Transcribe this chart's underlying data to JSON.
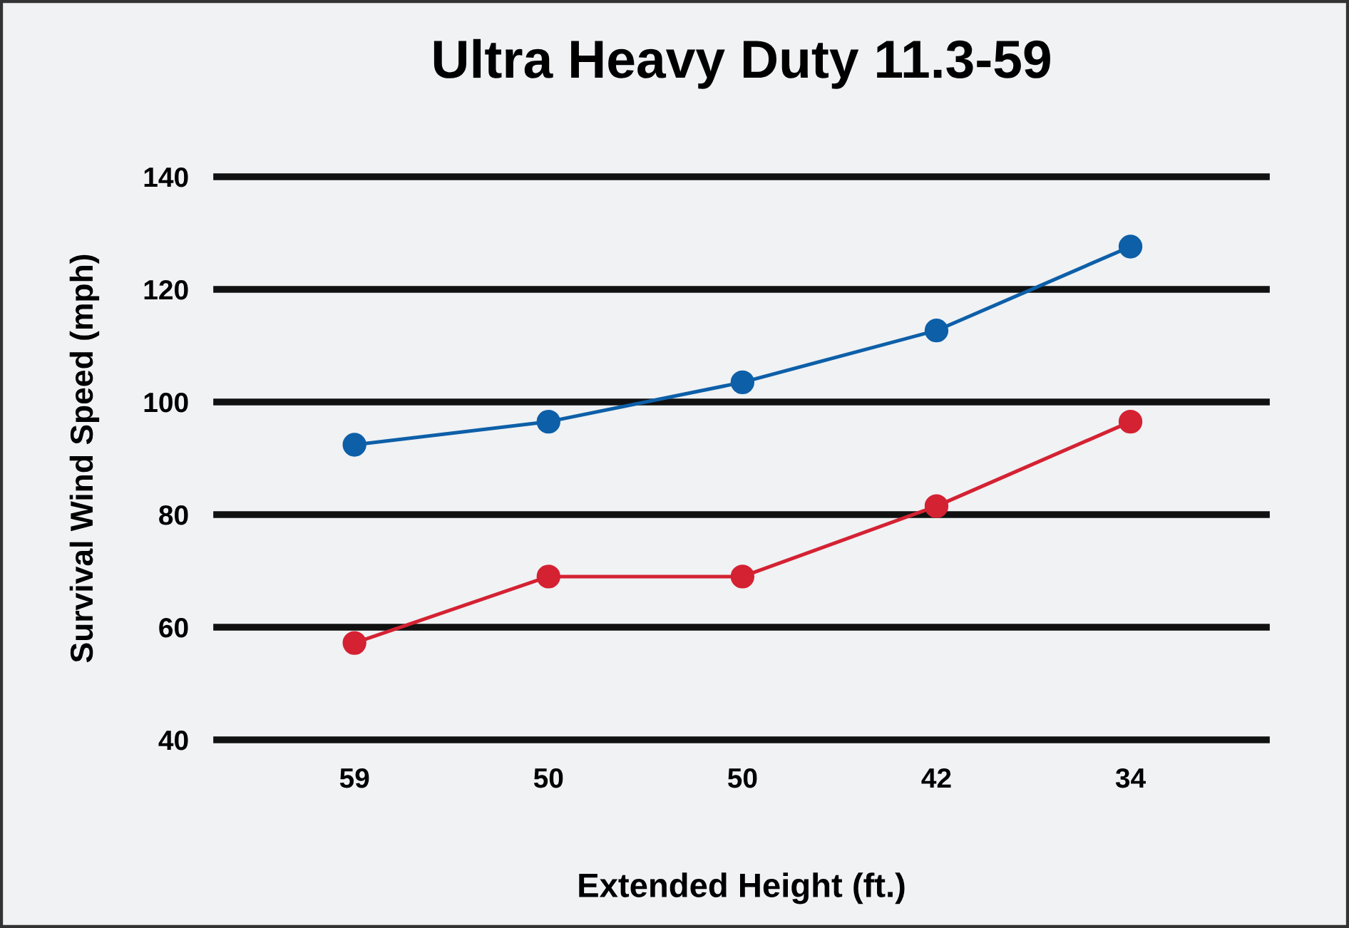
{
  "chart_data": {
    "type": "line",
    "title": "Ultra Heavy Duty 11.3-59",
    "xlabel": "Extended Height (ft.)",
    "ylabel": "Survival Wind Speed (mph)",
    "categories": [
      "59",
      "50",
      "50",
      "42",
      "34"
    ],
    "series": [
      {
        "color": "#0d5fa8",
        "values": [
          92.4,
          96.5,
          103.5,
          112.7,
          127.6
        ]
      },
      {
        "color": "#d42233",
        "values": [
          57.2,
          69,
          69,
          81.5,
          96.5
        ]
      }
    ],
    "ylim": [
      40,
      140
    ],
    "yticks": [
      40,
      60,
      80,
      100,
      120,
      140
    ],
    "grid": "y",
    "marker": "circle",
    "line_style": "solid",
    "legend": false
  }
}
